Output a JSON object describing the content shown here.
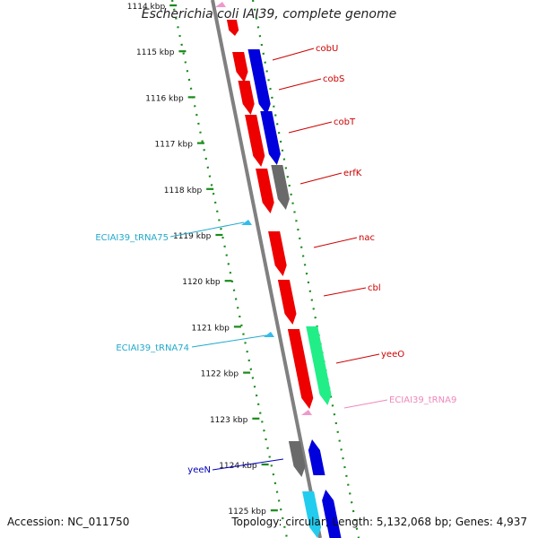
{
  "header": {
    "title": "Escherichia coli IAI39, complete genome"
  },
  "footer": {
    "accession": "Accession: NC_011750",
    "topology": "Topology: circular; Length: 5,132,068 bp; Genes: 4,937"
  },
  "colors": {
    "backbone": "#808080",
    "ticks": "#1a8a1a",
    "gene_red": "#ee0000",
    "gene_blue": "#0000dd",
    "gene_gray": "#6a6a6a",
    "gene_green": "#22ee88",
    "gene_cyan": "#22ccee",
    "trna_cyan": "#33bbee",
    "trna_pink": "#ee99cc",
    "label_red": "#cc0000",
    "label_cyan": "#22aacc",
    "label_pink": "#ee88bb",
    "label_blue": "#0000bb"
  },
  "ruler": {
    "unit": "kbp",
    "ticks": [
      "1114 kbp",
      "1115 kbp",
      "1116 kbp",
      "1117 kbp",
      "1118 kbp",
      "1119 kbp",
      "1120 kbp",
      "1121 kbp",
      "1122 kbp",
      "1123 kbp",
      "1124 kbp",
      "1125 kbp"
    ]
  },
  "genes": [
    {
      "label": "cobU",
      "color": "gene_red"
    },
    {
      "label": "cobS",
      "color": "gene_red"
    },
    {
      "label": "cobT",
      "color": "gene_red"
    },
    {
      "label": "erfK",
      "color": "gene_red"
    },
    {
      "label": "nac",
      "color": "gene_red"
    },
    {
      "label": "cbl",
      "color": "gene_red"
    },
    {
      "label": "yeeO",
      "color": "gene_red"
    },
    {
      "label": "ECIAI39_tRNA9",
      "color": "trna_pink"
    },
    {
      "label": "ECIAI39_tRNA75",
      "color": "trna_cyan"
    },
    {
      "label": "ECIAI39_tRNA74",
      "color": "trna_cyan"
    },
    {
      "label": "yeeN",
      "color": "gene_blue"
    }
  ]
}
